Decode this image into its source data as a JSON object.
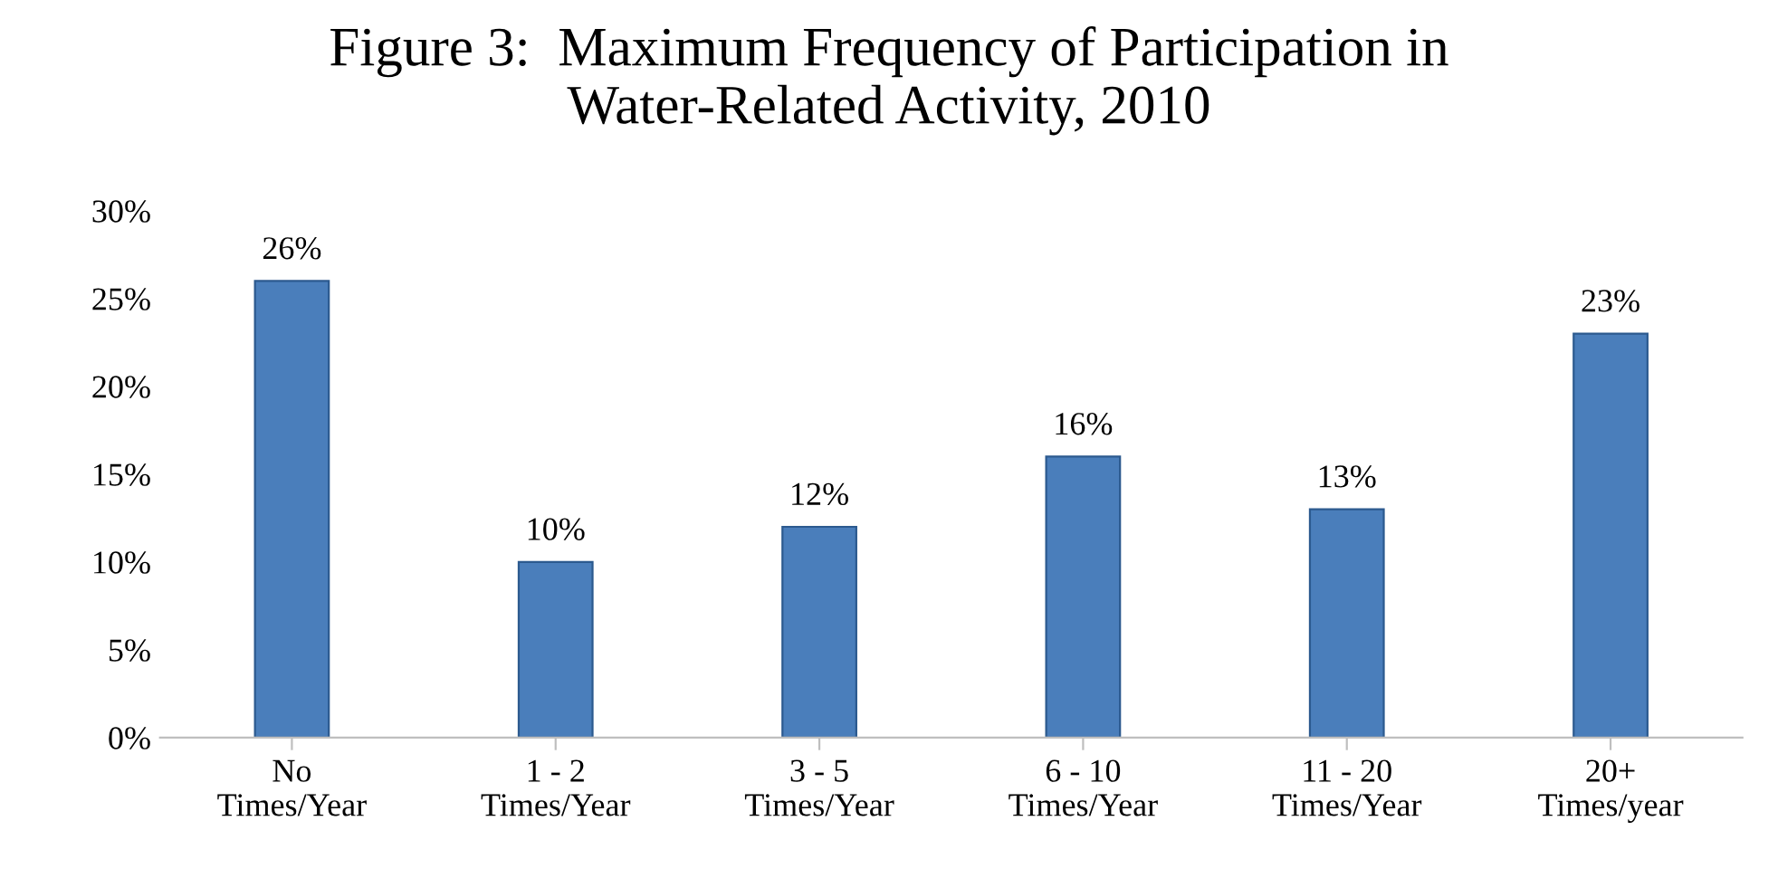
{
  "chart_data": {
    "type": "bar",
    "title": "Figure 3:  Maximum Frequency of Participation in\nWater-Related Activity, 2010",
    "categories": [
      "No\nTimes/Year",
      "1 - 2\nTimes/Year",
      "3 - 5\nTimes/Year",
      "6 - 10\nTimes/Year",
      "11 - 20\nTimes/Year",
      "20+\nTimes/year"
    ],
    "values": [
      26,
      10,
      12,
      16,
      13,
      23
    ],
    "value_labels": [
      "26%",
      "10%",
      "12%",
      "16%",
      "13%",
      "23%"
    ],
    "color": "#4a7ebb",
    "ylim": [
      0,
      30
    ],
    "yticks": [
      {
        "value": 0,
        "label": "0%"
      },
      {
        "value": 5,
        "label": "5%"
      },
      {
        "value": 10,
        "label": "10%"
      },
      {
        "value": 15,
        "label": "15%"
      },
      {
        "value": 20,
        "label": "20%"
      },
      {
        "value": 25,
        "label": "25%"
      },
      {
        "value": 30,
        "label": "30%"
      }
    ],
    "grid": false
  }
}
